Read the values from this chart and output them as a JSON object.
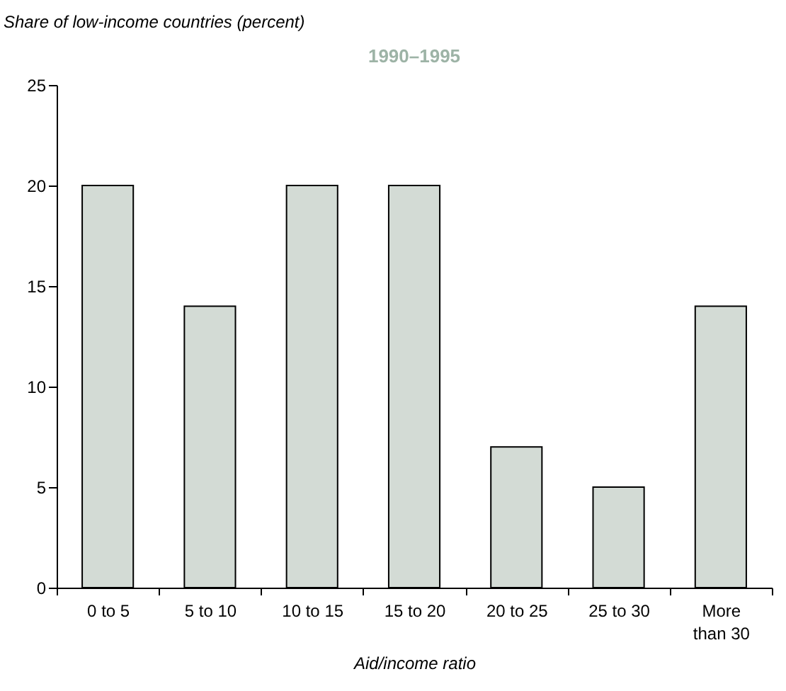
{
  "chart_data": {
    "type": "bar",
    "title": "1990–1995",
    "xlabel": "Aid/income ratio",
    "ylabel": "Share of low-income countries (percent)",
    "categories": [
      "0 to 5",
      "5 to 10",
      "10 to 15",
      "15 to 20",
      "20 to 25",
      "25 to 30",
      "More than 30"
    ],
    "values": [
      20,
      14,
      20,
      20,
      7,
      5,
      14
    ],
    "color": "#d3dbd5",
    "ylim": [
      0,
      25
    ],
    "yticks": [
      0,
      5,
      10,
      15,
      20,
      25
    ],
    "grid": false
  }
}
